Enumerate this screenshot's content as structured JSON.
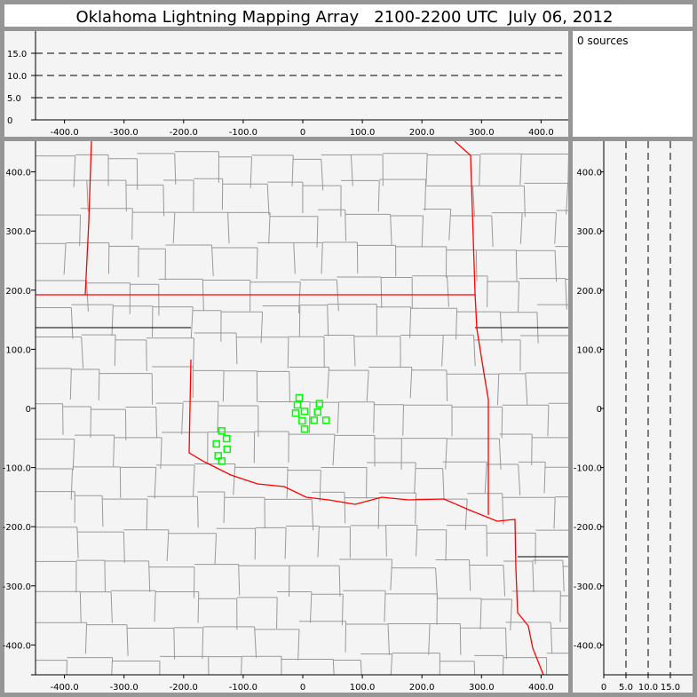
{
  "title": "Oklahoma Lightning Mapping Array   2100-2200 UTC  July 06, 2012",
  "source_count_label": "0 sources",
  "colors": {
    "background": "#969696",
    "panel": "#f4f4f4",
    "state_border": "#ff0000",
    "county_border": "#999999",
    "station": "#00ff00"
  },
  "chart_data": [
    {
      "type": "line",
      "name_role": "altitude vs east-west",
      "xlim": [
        -450,
        450
      ],
      "ylim": [
        0,
        20
      ],
      "x_ticks": [
        "-400.0",
        "-300.0",
        "-200.0",
        "-100.0",
        "0",
        "100.0",
        "200.0",
        "300.0",
        "400.0"
      ],
      "x_tick_values": [
        -400,
        -300,
        -200,
        -100,
        0,
        100,
        200,
        300,
        400
      ],
      "y_ticks": [
        "0",
        "5.0",
        "10.0",
        "15.0"
      ],
      "y_tick_values": [
        0,
        5,
        10,
        15
      ],
      "dashed_gridlines": [
        5,
        10,
        15
      ]
    },
    {
      "type": "scatter",
      "name_role": "plan view map",
      "xlim": [
        -450,
        450
      ],
      "ylim": [
        -450,
        450
      ],
      "x_ticks": [
        "-400.0",
        "-300.0",
        "-200.0",
        "-100.0",
        "0",
        "100.0",
        "200.0",
        "300.0",
        "400.0"
      ],
      "x_tick_values": [
        -400,
        -300,
        -200,
        -100,
        0,
        100,
        200,
        300,
        400
      ],
      "y_ticks": [
        "-400.0",
        "-300.0",
        "-200.0",
        "-100.0",
        "0",
        "100.0",
        "200.0",
        "300.0",
        "400.0"
      ],
      "y_tick_values": [
        -400,
        -300,
        -200,
        -100,
        0,
        100,
        200,
        300,
        400
      ],
      "stations": [
        [
          -6,
          18
        ],
        [
          -9,
          6
        ],
        [
          -12,
          -8
        ],
        [
          3,
          -5
        ],
        [
          28,
          8
        ],
        [
          25,
          -6
        ],
        [
          -1,
          -21
        ],
        [
          19,
          -20
        ],
        [
          39,
          -20
        ],
        [
          3,
          -35
        ],
        [
          -136,
          -38
        ],
        [
          -128,
          -51
        ],
        [
          -145,
          -60
        ],
        [
          -127,
          -69
        ],
        [
          -142,
          -80
        ],
        [
          -136,
          -89
        ]
      ]
    },
    {
      "type": "line",
      "name_role": "north-south vs altitude",
      "xlim": [
        0,
        20
      ],
      "ylim": [
        -450,
        450
      ],
      "x_ticks": [
        "0",
        "5.0",
        "10.0",
        "15.0"
      ],
      "x_tick_values": [
        0,
        5,
        10,
        15
      ],
      "y_ticks": [
        "-400.0",
        "-300.0",
        "-200.0",
        "-100.0",
        "0",
        "100.0",
        "200.0",
        "300.0",
        "400.0"
      ],
      "y_tick_values": [
        -400,
        -300,
        -200,
        -100,
        0,
        100,
        200,
        300,
        400
      ],
      "dashed_gridlines": [
        5,
        10,
        15
      ]
    }
  ]
}
